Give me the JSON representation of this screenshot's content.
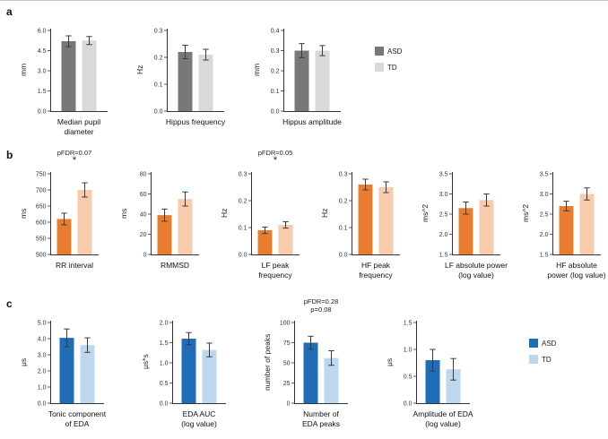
{
  "figure": {
    "panel_labels": [
      "a",
      "b",
      "c"
    ]
  },
  "panels": [
    {
      "id": "a",
      "label": "a",
      "legend": [
        "ASD",
        "TD"
      ],
      "colors": [
        "#787878",
        "#d9d9d9"
      ]
    },
    {
      "id": "b",
      "label": "b",
      "legend": [
        "ASD",
        "TD"
      ],
      "colors": [
        "#e87d2e",
        "#f8cbad"
      ]
    },
    {
      "id": "c",
      "label": "c",
      "legend": [
        "ASD",
        "TD"
      ],
      "colors": [
        "#1f6db6",
        "#bdd7ee"
      ]
    }
  ],
  "chart_data": [
    {
      "panel": "a",
      "id": "median-pupil-diameter",
      "type": "bar",
      "title": [
        "Median pupil",
        "diameter"
      ],
      "ylabel": "mm",
      "categories": [
        "ASD",
        "TD"
      ],
      "values": [
        5.2,
        5.25
      ],
      "errors": [
        0.4,
        0.3
      ],
      "ylim": [
        0,
        6
      ],
      "yticks": [
        0,
        1.5,
        3,
        4.5,
        6
      ],
      "ytick_labels": [
        "0.0",
        "1.5",
        "3.0",
        "4.5",
        "6.0"
      ],
      "annotation": []
    },
    {
      "panel": "a",
      "id": "hippus-frequency",
      "type": "bar",
      "title": [
        "Hippus frequency"
      ],
      "ylabel": "Hz",
      "categories": [
        "ASD",
        "TD"
      ],
      "values": [
        0.22,
        0.21
      ],
      "errors": [
        0.025,
        0.02
      ],
      "ylim": [
        0,
        0.3
      ],
      "yticks": [
        0,
        0.1,
        0.2,
        0.3
      ],
      "ytick_labels": [
        "0.0",
        "0.1",
        "0.2",
        "0.3"
      ],
      "annotation": []
    },
    {
      "panel": "a",
      "id": "hippus-amplitude",
      "type": "bar",
      "title": [
        "Hippus amplitude"
      ],
      "ylabel": "mm",
      "categories": [
        "ASD",
        "TD"
      ],
      "values": [
        0.3,
        0.3
      ],
      "errors": [
        0.035,
        0.025
      ],
      "ylim": [
        0,
        0.4
      ],
      "yticks": [
        0,
        0.1,
        0.2,
        0.3,
        0.4
      ],
      "ytick_labels": [
        "0.0",
        "0.1",
        "0.2",
        "0.3",
        "0.4"
      ],
      "annotation": []
    },
    {
      "panel": "b",
      "id": "rr-interval",
      "type": "bar",
      "title": [
        "RR interval"
      ],
      "ylabel": "ms",
      "categories": [
        "ASD",
        "TD"
      ],
      "values": [
        610,
        700
      ],
      "errors": [
        18,
        22
      ],
      "ylim": [
        500,
        750
      ],
      "yticks": [
        500,
        550,
        600,
        650,
        700,
        750
      ],
      "ytick_labels": [
        "500",
        "550",
        "600",
        "650",
        "700",
        "750"
      ],
      "annotation": [
        "pFDR=0.07",
        "*"
      ]
    },
    {
      "panel": "b",
      "id": "rmmsd",
      "type": "bar",
      "title": [
        "RMMSD"
      ],
      "ylabel": "ms",
      "categories": [
        "ASD",
        "TD"
      ],
      "values": [
        39,
        55
      ],
      "errors": [
        6,
        7
      ],
      "ylim": [
        0,
        80
      ],
      "yticks": [
        0,
        20,
        40,
        60,
        80
      ],
      "ytick_labels": [
        "0",
        "20",
        "40",
        "60",
        "80"
      ],
      "annotation": []
    },
    {
      "panel": "b",
      "id": "lf-peak-frequency",
      "type": "bar",
      "title": [
        "LF peak",
        "frequency"
      ],
      "ylabel": "Hz",
      "categories": [
        "ASD",
        "TD"
      ],
      "values": [
        0.09,
        0.11
      ],
      "errors": [
        0.012,
        0.012
      ],
      "ylim": [
        0,
        0.3
      ],
      "yticks": [
        0,
        0.1,
        0.2,
        0.3
      ],
      "ytick_labels": [
        "0.0",
        "0.1",
        "0.2",
        "0.3"
      ],
      "annotation": [
        "pFDR=0.05",
        "*"
      ]
    },
    {
      "panel": "b",
      "id": "hf-peak-frequency",
      "type": "bar",
      "title": [
        "HF peak",
        "frequency"
      ],
      "ylabel": "Hz",
      "categories": [
        "ASD",
        "TD"
      ],
      "values": [
        0.26,
        0.25
      ],
      "errors": [
        0.02,
        0.02
      ],
      "ylim": [
        0,
        0.3
      ],
      "yticks": [
        0,
        0.1,
        0.2,
        0.3
      ],
      "ytick_labels": [
        "0.0",
        "0.1",
        "0.2",
        "0.3"
      ],
      "annotation": []
    },
    {
      "panel": "b",
      "id": "lf-absolute-power",
      "type": "bar",
      "title": [
        "LF absolute power",
        "(log value)"
      ],
      "ylabel": "ms^2",
      "categories": [
        "ASD",
        "TD"
      ],
      "values": [
        2.65,
        2.85
      ],
      "errors": [
        0.15,
        0.15
      ],
      "ylim": [
        1.5,
        3.5
      ],
      "yticks": [
        1.5,
        2,
        2.5,
        3,
        3.5
      ],
      "ytick_labels": [
        "1.5",
        "2.0",
        "2.5",
        "3.0",
        "3.5"
      ],
      "annotation": []
    },
    {
      "panel": "b",
      "id": "hf-absolute-power",
      "type": "bar",
      "title": [
        "HF absolute",
        "power (log value)"
      ],
      "ylabel": "ms^2",
      "categories": [
        "ASD",
        "TD"
      ],
      "values": [
        2.7,
        3.0
      ],
      "errors": [
        0.12,
        0.15
      ],
      "ylim": [
        1.5,
        3.5
      ],
      "yticks": [
        1.5,
        2,
        2.5,
        3,
        3.5
      ],
      "ytick_labels": [
        "1.5",
        "2.0",
        "2.5",
        "3.0",
        "3.5"
      ],
      "annotation": []
    },
    {
      "panel": "c",
      "id": "tonic-component-of-eda",
      "type": "bar",
      "title": [
        "Tonic component",
        "of EDA"
      ],
      "ylabel": "μs",
      "categories": [
        "ASD",
        "TD"
      ],
      "values": [
        4.05,
        3.6
      ],
      "errors": [
        0.55,
        0.45
      ],
      "ylim": [
        0,
        5
      ],
      "yticks": [
        0,
        1,
        2,
        3,
        4,
        5
      ],
      "ytick_labels": [
        "0.0",
        "1.0",
        "2.0",
        "3.0",
        "4.0",
        "5.0"
      ],
      "annotation": []
    },
    {
      "panel": "c",
      "id": "eda-auc",
      "type": "bar",
      "title": [
        "EDA AUC",
        "(log value)"
      ],
      "ylabel": "μs*s",
      "categories": [
        "ASD",
        "TD"
      ],
      "values": [
        1.6,
        1.32
      ],
      "errors": [
        0.15,
        0.17
      ],
      "ylim": [
        0,
        2
      ],
      "yticks": [
        0,
        0.5,
        1,
        1.5,
        2
      ],
      "ytick_labels": [
        "0.0",
        "0.5",
        "1.0",
        "1.5",
        "2.0"
      ],
      "annotation": []
    },
    {
      "panel": "c",
      "id": "number-of-eda-peaks",
      "type": "bar",
      "title": [
        "Number of",
        "EDA peaks"
      ],
      "ylabel": "number of peaks",
      "categories": [
        "ASD",
        "TD"
      ],
      "values": [
        75,
        56
      ],
      "errors": [
        8,
        9
      ],
      "ylim": [
        0,
        100
      ],
      "yticks": [
        0,
        25,
        50,
        75,
        100
      ],
      "ytick_labels": [
        "0",
        "25",
        "50",
        "75",
        "100"
      ],
      "annotation": [
        "pFDR=0.28",
        "p=0.08"
      ]
    },
    {
      "panel": "c",
      "id": "amplitude-of-eda",
      "type": "bar",
      "title": [
        "Amplitude of EDA",
        "(log value)"
      ],
      "ylabel": "μs",
      "categories": [
        "ASD",
        "TD"
      ],
      "values": [
        0.8,
        0.63
      ],
      "errors": [
        0.2,
        0.2
      ],
      "ylim": [
        0,
        1.5
      ],
      "yticks": [
        0,
        0.5,
        1,
        1.5
      ],
      "ytick_labels": [
        "0.0",
        "0.5",
        "1.0",
        "1.5"
      ],
      "annotation": []
    }
  ]
}
